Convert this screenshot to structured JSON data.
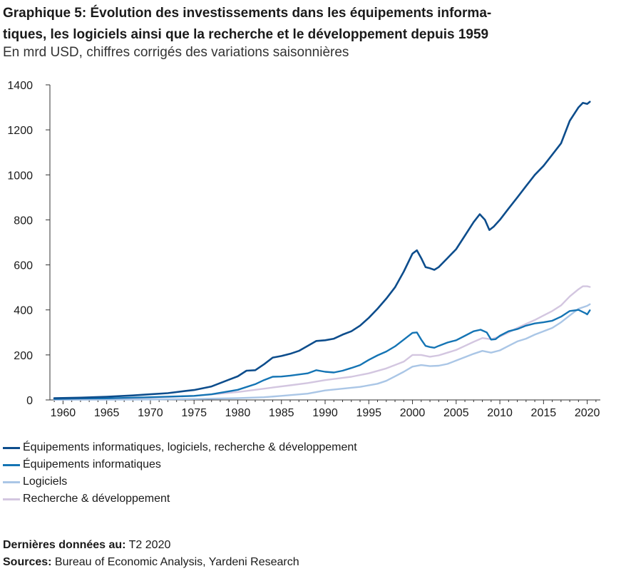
{
  "title_line1": "Graphique 5: Évolution des investissements dans les équipements informa-",
  "title_line2": "tiques, les logiciels ainsi que la recherche et le développement depuis 1959",
  "subtitle": "En mrd USD, chiffres corrigés des variations saisonnières",
  "legend": [
    {
      "label": "Équipements informatiques, logiciels, recherche & développement",
      "color": "#0d4d8c"
    },
    {
      "label": "Équipements informatiques",
      "color": "#1474b4"
    },
    {
      "label": "Logiciels",
      "color": "#aac6e6"
    },
    {
      "label": "Recherche & développement",
      "color": "#d3c6e0"
    }
  ],
  "footer": {
    "last_data_label": "Dernières données au:",
    "last_data_value": "T2 2020",
    "sources_label": "Sources:",
    "sources_value": "Bureau of Economic Analysis, Yardeni Research"
  },
  "chart_data": {
    "type": "line",
    "title": "Graphique 5: Évolution des investissements dans les équipements informatiques, les logiciels ainsi que la recherche et le développement depuis 1959",
    "ylabel": "",
    "xlabel": "",
    "xlim": [
      1958.5,
      2021.5
    ],
    "ylim": [
      0,
      1400
    ],
    "yticks": [
      0,
      200,
      400,
      600,
      800,
      1000,
      1200,
      1400
    ],
    "xticks": [
      1960,
      1965,
      1970,
      1975,
      1980,
      1985,
      1990,
      1995,
      2000,
      2005,
      2010,
      2015,
      2020
    ],
    "grid": false,
    "legend_position": "bottom",
    "series": [
      {
        "name": "Équipements informatiques, logiciels, recherche & développement",
        "color": "#0d4d8c",
        "points": [
          [
            1959,
            8
          ],
          [
            1962,
            10
          ],
          [
            1965,
            14
          ],
          [
            1968,
            20
          ],
          [
            1970,
            25
          ],
          [
            1972,
            30
          ],
          [
            1974,
            40
          ],
          [
            1975,
            44
          ],
          [
            1977,
            60
          ],
          [
            1979,
            90
          ],
          [
            1980,
            105
          ],
          [
            1981,
            130
          ],
          [
            1982,
            132
          ],
          [
            1983,
            158
          ],
          [
            1984,
            188
          ],
          [
            1985,
            195
          ],
          [
            1986,
            205
          ],
          [
            1987,
            218
          ],
          [
            1988,
            240
          ],
          [
            1989,
            262
          ],
          [
            1990,
            265
          ],
          [
            1991,
            272
          ],
          [
            1992,
            290
          ],
          [
            1993,
            305
          ],
          [
            1994,
            330
          ],
          [
            1995,
            365
          ],
          [
            1996,
            405
          ],
          [
            1997,
            450
          ],
          [
            1998,
            500
          ],
          [
            1999,
            570
          ],
          [
            2000,
            650
          ],
          [
            2000.5,
            665
          ],
          [
            2001,
            630
          ],
          [
            2001.5,
            590
          ],
          [
            2002,
            585
          ],
          [
            2002.5,
            578
          ],
          [
            2003,
            590
          ],
          [
            2004,
            630
          ],
          [
            2005,
            670
          ],
          [
            2006,
            730
          ],
          [
            2007,
            790
          ],
          [
            2007.7,
            825
          ],
          [
            2008.3,
            800
          ],
          [
            2008.8,
            755
          ],
          [
            2009.3,
            770
          ],
          [
            2010,
            800
          ],
          [
            2011,
            850
          ],
          [
            2012,
            900
          ],
          [
            2013,
            950
          ],
          [
            2014,
            1000
          ],
          [
            2015,
            1040
          ],
          [
            2016,
            1090
          ],
          [
            2017,
            1140
          ],
          [
            2018,
            1240
          ],
          [
            2019,
            1300
          ],
          [
            2019.5,
            1320
          ],
          [
            2020,
            1315
          ],
          [
            2020.3,
            1325
          ]
        ]
      },
      {
        "name": "Équipements informatiques",
        "color": "#1474b4",
        "points": [
          [
            1959,
            4
          ],
          [
            1962,
            6
          ],
          [
            1965,
            7
          ],
          [
            1970,
            12
          ],
          [
            1975,
            18
          ],
          [
            1977,
            25
          ],
          [
            1980,
            45
          ],
          [
            1982,
            70
          ],
          [
            1983,
            88
          ],
          [
            1984,
            103
          ],
          [
            1985,
            104
          ],
          [
            1986,
            108
          ],
          [
            1988,
            118
          ],
          [
            1989,
            132
          ],
          [
            1990,
            125
          ],
          [
            1991,
            122
          ],
          [
            1992,
            130
          ],
          [
            1993,
            142
          ],
          [
            1994,
            155
          ],
          [
            1995,
            178
          ],
          [
            1996,
            198
          ],
          [
            1997,
            215
          ],
          [
            1998,
            238
          ],
          [
            1999,
            268
          ],
          [
            2000,
            298
          ],
          [
            2000.5,
            300
          ],
          [
            2001,
            268
          ],
          [
            2001.5,
            240
          ],
          [
            2002,
            235
          ],
          [
            2002.5,
            232
          ],
          [
            2003,
            240
          ],
          [
            2004,
            255
          ],
          [
            2005,
            265
          ],
          [
            2006,
            285
          ],
          [
            2007,
            305
          ],
          [
            2007.8,
            312
          ],
          [
            2008.5,
            300
          ],
          [
            2009,
            268
          ],
          [
            2009.5,
            270
          ],
          [
            2010,
            285
          ],
          [
            2011,
            305
          ],
          [
            2012,
            315
          ],
          [
            2013,
            330
          ],
          [
            2014,
            340
          ],
          [
            2015,
            345
          ],
          [
            2016,
            352
          ],
          [
            2017,
            370
          ],
          [
            2018,
            395
          ],
          [
            2019,
            400
          ],
          [
            2019.8,
            385
          ],
          [
            2020,
            380
          ],
          [
            2020.3,
            398
          ]
        ]
      },
      {
        "name": "Logiciels",
        "color": "#aac6e6",
        "points": [
          [
            1959,
            0.5
          ],
          [
            1965,
            1
          ],
          [
            1970,
            2
          ],
          [
            1975,
            4
          ],
          [
            1980,
            8
          ],
          [
            1983,
            12
          ],
          [
            1985,
            18
          ],
          [
            1988,
            28
          ],
          [
            1990,
            42
          ],
          [
            1992,
            50
          ],
          [
            1994,
            58
          ],
          [
            1996,
            72
          ],
          [
            1997,
            85
          ],
          [
            1998,
            105
          ],
          [
            1999,
            125
          ],
          [
            2000,
            148
          ],
          [
            2001,
            155
          ],
          [
            2002,
            150
          ],
          [
            2003,
            152
          ],
          [
            2004,
            160
          ],
          [
            2005,
            175
          ],
          [
            2006,
            190
          ],
          [
            2007,
            205
          ],
          [
            2008,
            218
          ],
          [
            2009,
            210
          ],
          [
            2010,
            220
          ],
          [
            2011,
            240
          ],
          [
            2012,
            260
          ],
          [
            2013,
            272
          ],
          [
            2014,
            290
          ],
          [
            2015,
            305
          ],
          [
            2016,
            320
          ],
          [
            2017,
            345
          ],
          [
            2018,
            375
          ],
          [
            2019,
            405
          ],
          [
            2020,
            418
          ],
          [
            2020.3,
            425
          ]
        ]
      },
      {
        "name": "Recherche & développement",
        "color": "#d3c6e0",
        "points": [
          [
            1959,
            3
          ],
          [
            1962,
            4
          ],
          [
            1965,
            6
          ],
          [
            1968,
            8
          ],
          [
            1970,
            10
          ],
          [
            1972,
            13
          ],
          [
            1975,
            18
          ],
          [
            1978,
            28
          ],
          [
            1980,
            35
          ],
          [
            1982,
            45
          ],
          [
            1984,
            55
          ],
          [
            1986,
            65
          ],
          [
            1988,
            75
          ],
          [
            1990,
            88
          ],
          [
            1992,
            98
          ],
          [
            1993,
            103
          ],
          [
            1995,
            118
          ],
          [
            1997,
            140
          ],
          [
            1999,
            170
          ],
          [
            2000,
            200
          ],
          [
            2001,
            200
          ],
          [
            2002,
            192
          ],
          [
            2003,
            198
          ],
          [
            2004,
            210
          ],
          [
            2005,
            222
          ],
          [
            2006,
            240
          ],
          [
            2007,
            258
          ],
          [
            2008,
            275
          ],
          [
            2009,
            270
          ],
          [
            2010,
            282
          ],
          [
            2011,
            300
          ],
          [
            2012,
            320
          ],
          [
            2013,
            338
          ],
          [
            2014,
            355
          ],
          [
            2015,
            375
          ],
          [
            2016,
            395
          ],
          [
            2017,
            420
          ],
          [
            2018,
            460
          ],
          [
            2019,
            492
          ],
          [
            2019.5,
            505
          ],
          [
            2020,
            505
          ],
          [
            2020.3,
            502
          ]
        ]
      }
    ]
  }
}
